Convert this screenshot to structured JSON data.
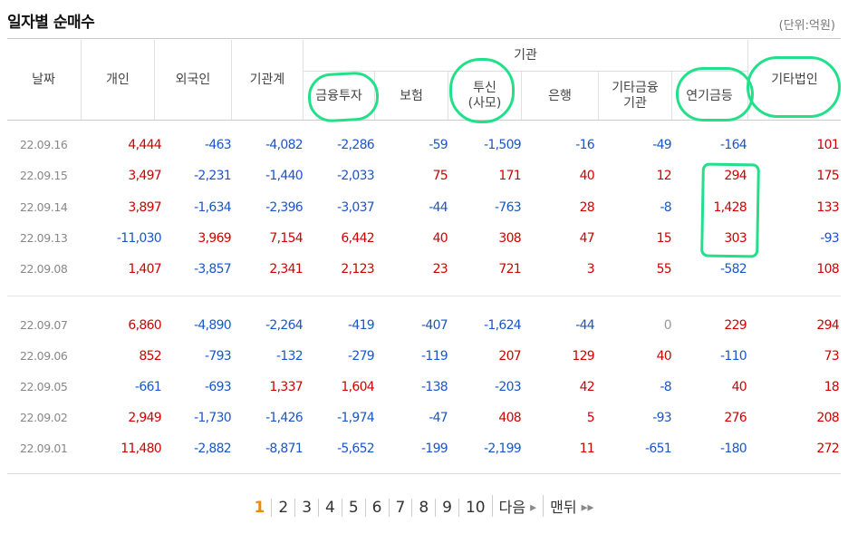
{
  "header": {
    "title": "일자별 순매수",
    "unit": "(단위:억원)"
  },
  "columns": {
    "date": "날짜",
    "individual": "개인",
    "foreign": "외국인",
    "inst_total": "기관계",
    "inst_group": "기관",
    "fin_invest": "금융투자",
    "insurance": "보험",
    "trust_1": "투신",
    "trust_2": "(사모)",
    "bank": "은행",
    "other_fin_1": "기타금융",
    "other_fin_2": "기관",
    "pension": "연기금등",
    "other_corp": "기타법인"
  },
  "rows": [
    {
      "date": "22.09.16",
      "v": [
        "4,444",
        "-463",
        "-4,082",
        "-2,286",
        "-59",
        "-1,509",
        "-16",
        "-49",
        "-164",
        "101"
      ]
    },
    {
      "date": "22.09.15",
      "v": [
        "3,497",
        "-2,231",
        "-1,440",
        "-2,033",
        "75",
        "171",
        "40",
        "12",
        "294",
        "175"
      ]
    },
    {
      "date": "22.09.14",
      "v": [
        "3,897",
        "-1,634",
        "-2,396",
        "-3,037",
        "-44",
        "-763",
        "28",
        "-8",
        "1,428",
        "133"
      ]
    },
    {
      "date": "22.09.13",
      "v": [
        "-11,030",
        "3,969",
        "7,154",
        "6,442",
        "40",
        "308",
        "47",
        "15",
        "303",
        "-93"
      ]
    },
    {
      "date": "22.09.08",
      "v": [
        "1,407",
        "-3,857",
        "2,341",
        "2,123",
        "23",
        "721",
        "3",
        "55",
        "-582",
        "108"
      ]
    },
    {
      "date": "22.09.07",
      "v": [
        "6,860",
        "-4,890",
        "-2,264",
        "-419",
        "-407",
        "-1,624",
        "-44",
        "0",
        "229",
        "294"
      ]
    },
    {
      "date": "22.09.06",
      "v": [
        "852",
        "-793",
        "-132",
        "-279",
        "-119",
        "207",
        "129",
        "40",
        "-110",
        "73"
      ]
    },
    {
      "date": "22.09.05",
      "v": [
        "-661",
        "-693",
        "1,337",
        "1,604",
        "-138",
        "-203",
        "42",
        "-8",
        "40",
        "18"
      ]
    },
    {
      "date": "22.09.02",
      "v": [
        "2,949",
        "-1,730",
        "-1,426",
        "-1,974",
        "-47",
        "408",
        "5",
        "-93",
        "276",
        "208"
      ]
    },
    {
      "date": "22.09.01",
      "v": [
        "11,480",
        "-2,882",
        "-8,871",
        "-5,652",
        "-199",
        "-2,199",
        "11",
        "-651",
        "-180",
        "272"
      ]
    }
  ],
  "pagination": {
    "pages": [
      "1",
      "2",
      "3",
      "4",
      "5",
      "6",
      "7",
      "8",
      "9",
      "10"
    ],
    "current": "1",
    "next_label": "다음",
    "last_label": "맨뒤",
    "next_icon": "triangle-right-icon",
    "last_icon": "double-triangle-right-icon"
  },
  "annotation_color": "#22e08a"
}
